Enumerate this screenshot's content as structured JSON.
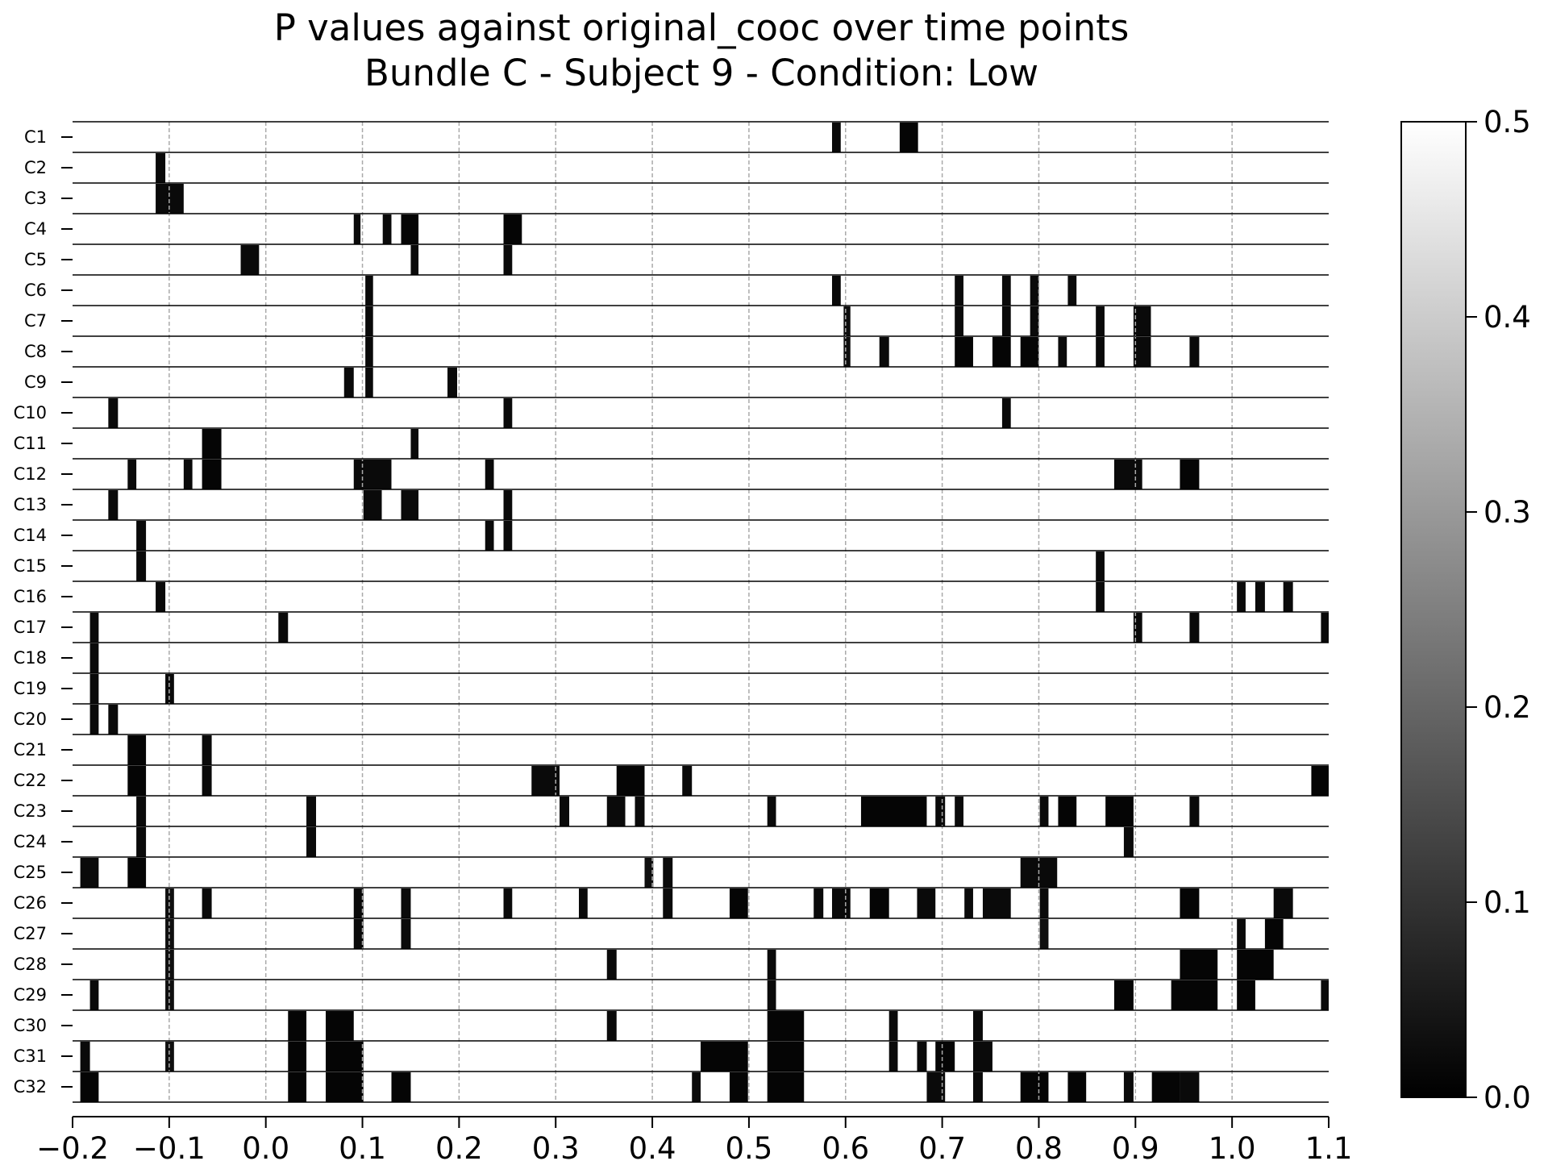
{
  "chart_data": {
    "type": "heatmap",
    "title": "P values against original_cooc over time points",
    "subtitle": "Bundle C - Subject 9 - Condition: Low",
    "x_ticks": [
      "−0.2",
      "−0.1",
      "0.0",
      "0.1",
      "0.2",
      "0.3",
      "0.4",
      "0.5",
      "0.6",
      "0.7",
      "0.8",
      "0.9",
      "1.0",
      "1.1"
    ],
    "xlim": [
      -0.2,
      1.1
    ],
    "vertical_dashed_grid_at": [
      -0.1,
      0.0,
      0.1,
      0.2,
      0.3,
      0.4,
      0.5,
      0.6,
      0.7,
      0.8,
      0.9,
      1.0
    ],
    "colorbar": {
      "cmap": "gray",
      "range": [
        0.0,
        0.5
      ],
      "ticks": [
        "0.0",
        "0.1",
        "0.2",
        "0.3",
        "0.4",
        "0.5"
      ]
    },
    "background_value": 0.5,
    "note_value": "each entry: [start_time, end_time, p_value] for low p-value segments",
    "channels": [
      {
        "name": "C1",
        "segments": [
          [
            0.586,
            0.595,
            0.02
          ],
          [
            0.656,
            0.675,
            0.01
          ]
        ]
      },
      {
        "name": "C2",
        "segments": [
          [
            -0.114,
            -0.104,
            0.02
          ]
        ]
      },
      {
        "name": "C3",
        "segments": [
          [
            -0.114,
            -0.085,
            0.02
          ]
        ]
      },
      {
        "name": "C4",
        "segments": [
          [
            0.091,
            0.098,
            0.02
          ],
          [
            0.121,
            0.13,
            0.02
          ],
          [
            0.14,
            0.158,
            0.01
          ],
          [
            0.246,
            0.265,
            0.01
          ]
        ]
      },
      {
        "name": "C5",
        "segments": [
          [
            -0.026,
            -0.007,
            0.02
          ],
          [
            0.15,
            0.158,
            0.02
          ],
          [
            0.246,
            0.255,
            0.02
          ]
        ]
      },
      {
        "name": "C6",
        "segments": [
          [
            0.103,
            0.111,
            0.02
          ],
          [
            0.586,
            0.595,
            0.02
          ],
          [
            0.713,
            0.722,
            0.02
          ],
          [
            0.762,
            0.771,
            0.02
          ],
          [
            0.791,
            0.8,
            0.02
          ],
          [
            0.83,
            0.839,
            0.02
          ]
        ]
      },
      {
        "name": "C7",
        "segments": [
          [
            0.103,
            0.111,
            0.02
          ],
          [
            0.598,
            0.605,
            0.03
          ],
          [
            0.713,
            0.722,
            0.02
          ],
          [
            0.762,
            0.771,
            0.02
          ],
          [
            0.791,
            0.8,
            0.02
          ],
          [
            0.859,
            0.868,
            0.02
          ],
          [
            0.898,
            0.916,
            0.02
          ]
        ]
      },
      {
        "name": "C8",
        "segments": [
          [
            0.103,
            0.111,
            0.02
          ],
          [
            0.598,
            0.605,
            0.03
          ],
          [
            0.635,
            0.645,
            0.02
          ],
          [
            0.713,
            0.732,
            0.01
          ],
          [
            0.752,
            0.771,
            0.01
          ],
          [
            0.781,
            0.8,
            0.01
          ],
          [
            0.82,
            0.829,
            0.02
          ],
          [
            0.859,
            0.868,
            0.02
          ],
          [
            0.898,
            0.916,
            0.02
          ],
          [
            0.956,
            0.966,
            0.02
          ]
        ]
      },
      {
        "name": "C9",
        "segments": [
          [
            0.081,
            0.091,
            0.02
          ],
          [
            0.103,
            0.111,
            0.02
          ],
          [
            0.188,
            0.198,
            0.02
          ]
        ]
      },
      {
        "name": "C10",
        "segments": [
          [
            -0.163,
            -0.153,
            0.02
          ],
          [
            0.246,
            0.255,
            0.02
          ],
          [
            0.762,
            0.771,
            0.02
          ]
        ]
      },
      {
        "name": "C11",
        "segments": [
          [
            -0.066,
            -0.046,
            0.01
          ],
          [
            0.15,
            0.158,
            0.02
          ]
        ]
      },
      {
        "name": "C12",
        "segments": [
          [
            -0.143,
            -0.134,
            0.02
          ],
          [
            -0.085,
            -0.076,
            0.02
          ],
          [
            -0.066,
            -0.046,
            0.01
          ],
          [
            0.091,
            0.13,
            0.02
          ],
          [
            0.227,
            0.236,
            0.02
          ],
          [
            0.878,
            0.907,
            0.02
          ],
          [
            0.946,
            0.966,
            0.01
          ]
        ]
      },
      {
        "name": "C13",
        "segments": [
          [
            -0.163,
            -0.153,
            0.02
          ],
          [
            0.101,
            0.12,
            0.02
          ],
          [
            0.14,
            0.158,
            0.02
          ],
          [
            0.246,
            0.255,
            0.02
          ]
        ]
      },
      {
        "name": "C14",
        "segments": [
          [
            -0.134,
            -0.124,
            0.02
          ],
          [
            0.227,
            0.236,
            0.02
          ],
          [
            0.246,
            0.255,
            0.02
          ]
        ]
      },
      {
        "name": "C15",
        "segments": [
          [
            -0.134,
            -0.124,
            0.02
          ],
          [
            0.859,
            0.868,
            0.02
          ]
        ]
      },
      {
        "name": "C16",
        "segments": [
          [
            -0.114,
            -0.104,
            0.02
          ],
          [
            0.859,
            0.868,
            0.02
          ],
          [
            1.005,
            1.014,
            0.02
          ],
          [
            1.024,
            1.034,
            0.02
          ],
          [
            1.053,
            1.063,
            0.02
          ]
        ]
      },
      {
        "name": "C17",
        "segments": [
          [
            -0.182,
            -0.173,
            0.02
          ],
          [
            0.013,
            0.023,
            0.02
          ],
          [
            0.898,
            0.907,
            0.02
          ],
          [
            0.956,
            0.966,
            0.02
          ],
          [
            1.092,
            1.1,
            0.02
          ]
        ]
      },
      {
        "name": "C18",
        "segments": [
          [
            -0.182,
            -0.173,
            0.02
          ]
        ]
      },
      {
        "name": "C19",
        "segments": [
          [
            -0.182,
            -0.173,
            0.02
          ],
          [
            -0.104,
            -0.095,
            0.02
          ]
        ]
      },
      {
        "name": "C20",
        "segments": [
          [
            -0.182,
            -0.173,
            0.02
          ],
          [
            -0.163,
            -0.153,
            0.02
          ]
        ]
      },
      {
        "name": "C21",
        "segments": [
          [
            -0.143,
            -0.124,
            0.01
          ],
          [
            -0.066,
            -0.056,
            0.02
          ]
        ]
      },
      {
        "name": "C22",
        "segments": [
          [
            -0.143,
            -0.124,
            0.01
          ],
          [
            -0.066,
            -0.056,
            0.02
          ],
          [
            0.275,
            0.304,
            0.02
          ],
          [
            0.363,
            0.392,
            0.01
          ],
          [
            0.431,
            0.441,
            0.02
          ],
          [
            1.082,
            1.1,
            0.01
          ]
        ]
      },
      {
        "name": "C23",
        "segments": [
          [
            -0.134,
            -0.124,
            0.02
          ],
          [
            0.042,
            0.052,
            0.02
          ],
          [
            0.304,
            0.314,
            0.02
          ],
          [
            0.353,
            0.372,
            0.02
          ],
          [
            0.382,
            0.392,
            0.02
          ],
          [
            0.519,
            0.528,
            0.02
          ],
          [
            0.616,
            0.684,
            0.01
          ],
          [
            0.693,
            0.703,
            0.02
          ],
          [
            0.713,
            0.722,
            0.02
          ],
          [
            0.801,
            0.81,
            0.02
          ],
          [
            0.82,
            0.839,
            0.01
          ],
          [
            0.869,
            0.898,
            0.01
          ],
          [
            0.956,
            0.966,
            0.02
          ]
        ]
      },
      {
        "name": "C24",
        "segments": [
          [
            -0.134,
            -0.124,
            0.02
          ],
          [
            0.042,
            0.052,
            0.02
          ],
          [
            0.888,
            0.898,
            0.02
          ]
        ]
      },
      {
        "name": "C25",
        "segments": [
          [
            -0.192,
            -0.173,
            0.02
          ],
          [
            -0.143,
            -0.124,
            0.01
          ],
          [
            0.392,
            0.401,
            0.03
          ],
          [
            0.411,
            0.421,
            0.02
          ],
          [
            0.781,
            0.819,
            0.02
          ]
        ]
      },
      {
        "name": "C26",
        "segments": [
          [
            -0.104,
            -0.095,
            0.03
          ],
          [
            -0.066,
            -0.056,
            0.02
          ],
          [
            0.091,
            0.101,
            0.02
          ],
          [
            0.14,
            0.15,
            0.02
          ],
          [
            0.246,
            0.255,
            0.02
          ],
          [
            0.324,
            0.333,
            0.02
          ],
          [
            0.411,
            0.421,
            0.02
          ],
          [
            0.48,
            0.499,
            0.01
          ],
          [
            0.567,
            0.577,
            0.02
          ],
          [
            0.586,
            0.605,
            0.02
          ],
          [
            0.625,
            0.645,
            0.01
          ],
          [
            0.674,
            0.693,
            0.02
          ],
          [
            0.723,
            0.732,
            0.02
          ],
          [
            0.742,
            0.771,
            0.02
          ],
          [
            0.801,
            0.81,
            0.02
          ],
          [
            0.946,
            0.966,
            0.01
          ],
          [
            1.043,
            1.063,
            0.02
          ]
        ]
      },
      {
        "name": "C27",
        "segments": [
          [
            -0.104,
            -0.095,
            0.03
          ],
          [
            0.091,
            0.101,
            0.02
          ],
          [
            0.14,
            0.15,
            0.02
          ],
          [
            0.801,
            0.81,
            0.03
          ],
          [
            1.005,
            1.014,
            0.02
          ],
          [
            1.034,
            1.053,
            0.01
          ]
        ]
      },
      {
        "name": "C28",
        "segments": [
          [
            -0.104,
            -0.095,
            0.03
          ],
          [
            0.353,
            0.363,
            0.02
          ],
          [
            0.519,
            0.528,
            0.02
          ],
          [
            0.946,
            0.985,
            0.01
          ],
          [
            1.005,
            1.043,
            0.01
          ]
        ]
      },
      {
        "name": "C29",
        "segments": [
          [
            -0.182,
            -0.173,
            0.02
          ],
          [
            -0.104,
            -0.095,
            0.03
          ],
          [
            0.519,
            0.528,
            0.02
          ],
          [
            0.878,
            0.898,
            0.01
          ],
          [
            0.937,
            0.985,
            0.01
          ],
          [
            1.005,
            1.024,
            0.01
          ],
          [
            1.092,
            1.1,
            0.02
          ]
        ]
      },
      {
        "name": "C30",
        "segments": [
          [
            0.023,
            0.042,
            0.01
          ],
          [
            0.062,
            0.091,
            0.01
          ],
          [
            0.353,
            0.363,
            0.02
          ],
          [
            0.519,
            0.557,
            0.01
          ],
          [
            0.645,
            0.654,
            0.02
          ],
          [
            0.732,
            0.742,
            0.02
          ]
        ]
      },
      {
        "name": "C31",
        "segments": [
          [
            -0.192,
            -0.182,
            0.02
          ],
          [
            -0.104,
            -0.095,
            0.03
          ],
          [
            0.023,
            0.042,
            0.01
          ],
          [
            0.062,
            0.101,
            0.01
          ],
          [
            0.45,
            0.499,
            0.01
          ],
          [
            0.519,
            0.557,
            0.01
          ],
          [
            0.645,
            0.654,
            0.02
          ],
          [
            0.674,
            0.684,
            0.02
          ],
          [
            0.693,
            0.713,
            0.01
          ],
          [
            0.732,
            0.752,
            0.02
          ]
        ]
      },
      {
        "name": "C32",
        "segments": [
          [
            -0.192,
            -0.173,
            0.01
          ],
          [
            0.023,
            0.042,
            0.01
          ],
          [
            0.062,
            0.101,
            0.01
          ],
          [
            0.13,
            0.15,
            0.01
          ],
          [
            0.441,
            0.45,
            0.02
          ],
          [
            0.48,
            0.499,
            0.01
          ],
          [
            0.519,
            0.557,
            0.01
          ],
          [
            0.684,
            0.703,
            0.02
          ],
          [
            0.732,
            0.742,
            0.02
          ],
          [
            0.781,
            0.81,
            0.01
          ],
          [
            0.83,
            0.849,
            0.01
          ],
          [
            0.888,
            0.898,
            0.02
          ],
          [
            0.917,
            0.946,
            0.01
          ],
          [
            0.946,
            0.966,
            0.02
          ]
        ]
      }
    ]
  }
}
